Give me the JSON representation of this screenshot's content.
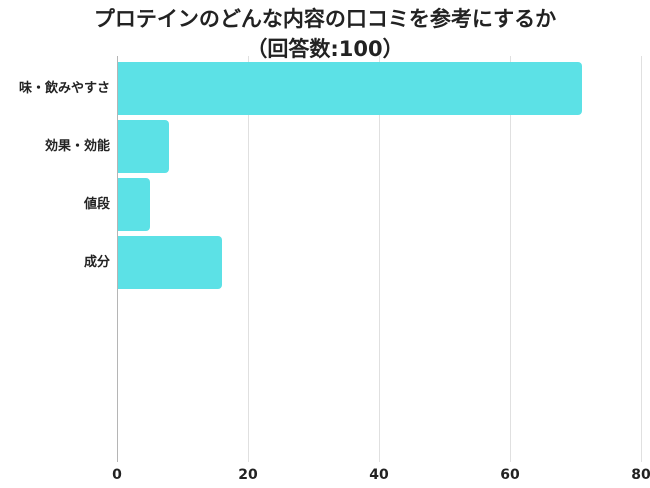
{
  "chart_data": {
    "type": "bar",
    "orientation": "horizontal",
    "title": "プロテインのどんな内容の口コミを参考にするか",
    "subtitle": "（回答数:100）",
    "categories": [
      "味・飲みやすさ",
      "効果・効能",
      "値段",
      "成分"
    ],
    "values": [
      71,
      8,
      5,
      16
    ],
    "xlabel": "",
    "ylabel": "",
    "xlim": [
      0,
      80
    ],
    "xticks": [
      "0",
      "20",
      "40",
      "60",
      "80"
    ],
    "grid": true,
    "legend": null,
    "bar_color": "#5ce1e6"
  }
}
